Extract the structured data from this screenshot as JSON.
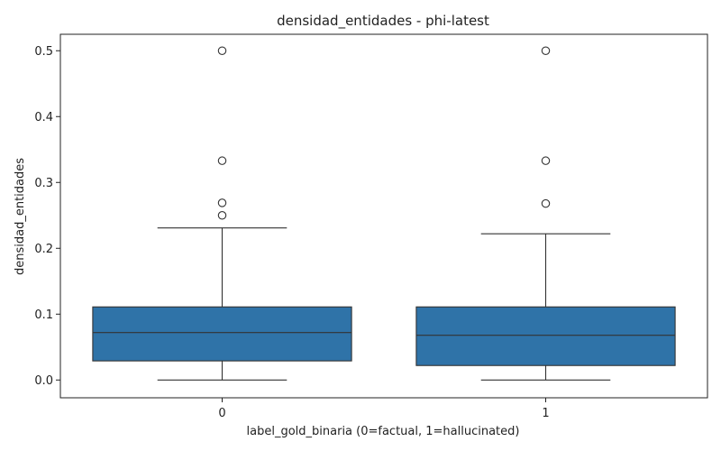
{
  "chart_data": {
    "type": "box",
    "title": "densidad_entidades - phi-latest",
    "xlabel": "label_gold_binaria (0=factual, 1=hallucinated)",
    "ylabel": "densidad_entidades",
    "ylim": [
      -0.027,
      0.525
    ],
    "yticks": [
      "0.0",
      "0.1",
      "0.2",
      "0.3",
      "0.4",
      "0.5"
    ],
    "categories": [
      "0",
      "1"
    ],
    "grid": false,
    "box_color": "#2f73a8",
    "line_color": "#333333",
    "boxes": [
      {
        "category": "0",
        "whisker_low": 0.0,
        "q1": 0.029,
        "median": 0.072,
        "q3": 0.111,
        "whisker_high": 0.231,
        "outliers": [
          0.25,
          0.269,
          0.333,
          0.5
        ]
      },
      {
        "category": "1",
        "whisker_low": 0.0,
        "q1": 0.022,
        "median": 0.068,
        "q3": 0.111,
        "whisker_high": 0.222,
        "outliers": [
          0.268,
          0.333,
          0.5
        ]
      }
    ]
  }
}
